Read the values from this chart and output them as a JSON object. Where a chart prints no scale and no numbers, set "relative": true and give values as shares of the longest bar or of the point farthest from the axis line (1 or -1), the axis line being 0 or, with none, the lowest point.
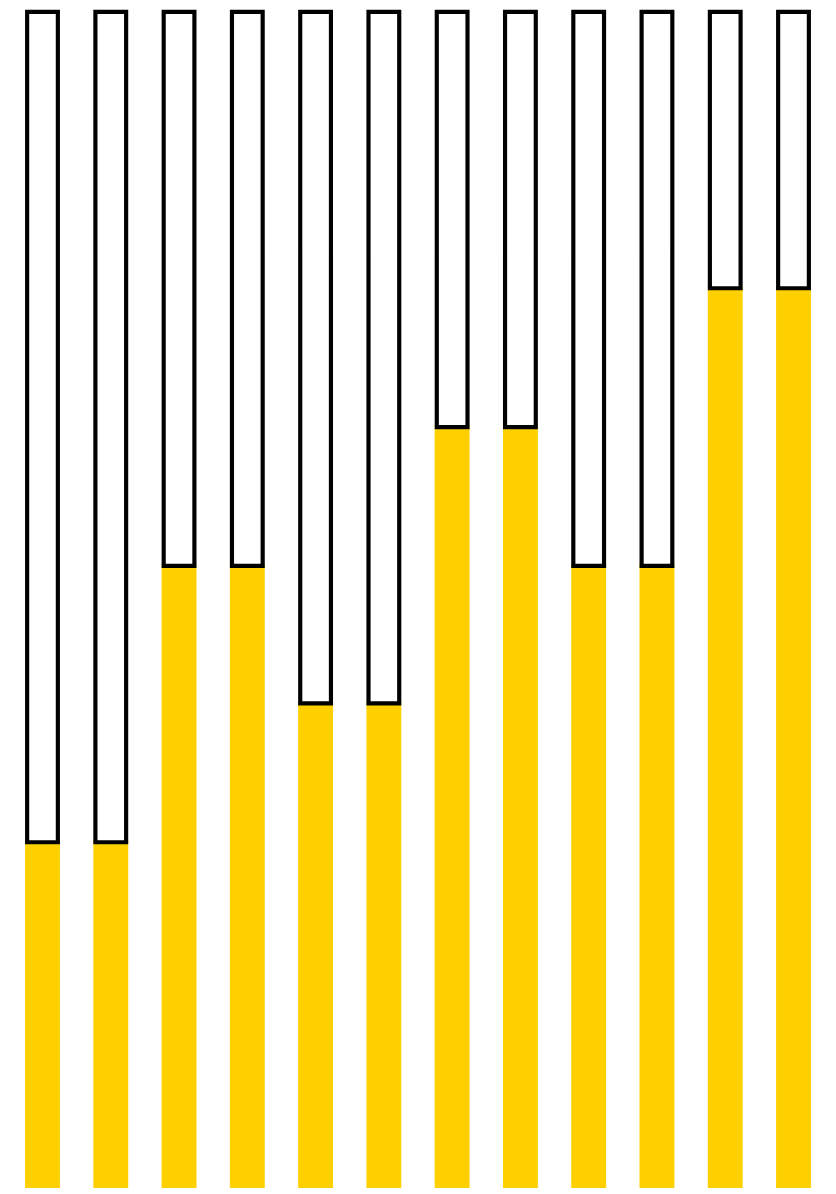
{
  "chart_data": {
    "type": "bar",
    "relative": true,
    "stacked": true,
    "categories": [
      null,
      null,
      null,
      null,
      null,
      null,
      null,
      null,
      null,
      null,
      null,
      null
    ],
    "series": [
      {
        "color": "#ffd000",
        "values": [
          0.294,
          0.294,
          0.529,
          0.529,
          0.412,
          0.412,
          0.647,
          0.647,
          0.529,
          0.529,
          0.765,
          0.765
        ]
      },
      {
        "color": "#ffffff",
        "values": [
          0.706,
          0.706,
          0.471,
          0.471,
          0.588,
          0.588,
          0.353,
          0.353,
          0.471,
          0.471,
          0.235,
          0.235
        ]
      }
    ]
  }
}
